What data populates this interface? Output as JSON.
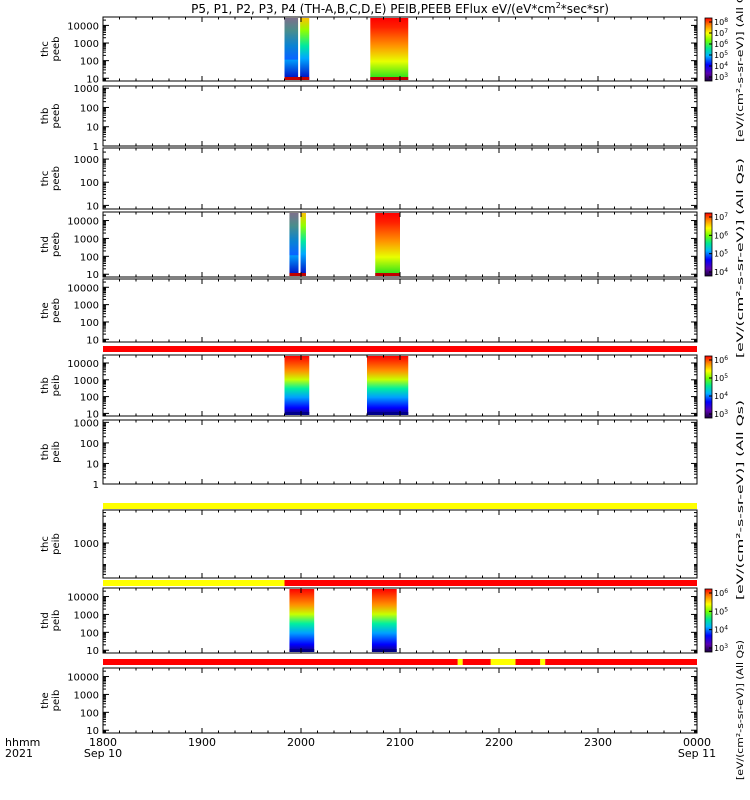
{
  "chart_data": {
    "type": "heatmap",
    "title": "P5, P1, P2, P3, P4 (TH-A,B,C,D,E) PEIB,PEEB EFlux eV/(eV*cm²*sec*sr)",
    "title_parts": {
      "before": "P5, P1, P2, P3, P4 (TH-A,B,C,D,E) PEIB,PEEB EFlux eV/(eV*cm",
      "sup": "2",
      "after": "*sec*sr)"
    },
    "xaxis": {
      "label_lines": [
        "hhmm",
        "2021"
      ],
      "range": [
        "1800",
        "0000"
      ],
      "ticks": [
        "1800",
        "1900",
        "2000",
        "2100",
        "2200",
        "2300",
        "0000"
      ],
      "date_labels": [
        {
          "at": "1800",
          "text": "Sep 10"
        },
        {
          "at": "0000",
          "text": "Sep 11"
        }
      ]
    },
    "colorbar_labels": [
      "[eV/(cm²-s-sr-eV)] (All Qs)",
      "[eV/(cm²-s-sr-eV)] (All Qs)",
      "[eV/(cm²-s-sr-eV)] (All Qs)",
      "[eV/(cm²-s-sr-eV)] (All Qs)"
    ],
    "colorbars": [
      {
        "exponents": [
          3,
          4,
          5,
          6,
          7,
          8
        ]
      },
      {
        "exponents": [
          4,
          5,
          6,
          7
        ]
      },
      {
        "exponents": [
          3,
          4,
          5,
          6
        ]
      },
      {
        "exponents": [
          3,
          4,
          5,
          6
        ]
      }
    ],
    "panels": [
      {
        "label": [
          "thc",
          "peeb"
        ],
        "yticks": [
          "10",
          "100",
          "1000",
          "10000"
        ],
        "ylim": [
          7,
          30000
        ],
        "cbar": 0,
        "bursts": [
          {
            "start": "1950",
            "end": "2005"
          },
          {
            "start": "2042",
            "end": "2105"
          }
        ]
      },
      {
        "label": [
          "thb",
          "peeb"
        ],
        "yticks": [
          "1",
          "10",
          "100",
          "1000"
        ],
        "ylim": [
          1,
          1300
        ],
        "cbar": null,
        "bursts": []
      },
      {
        "label": [
          "thc",
          "peeb"
        ],
        "yticks": [
          "10",
          "100",
          "1000"
        ],
        "ylim": [
          7,
          3000
        ],
        "cbar": null,
        "bursts": []
      },
      {
        "label": [
          "thd",
          "peeb"
        ],
        "yticks": [
          "10",
          "100",
          "1000",
          "10000"
        ],
        "ylim": [
          7,
          30000
        ],
        "cbar": 1,
        "bursts": [
          {
            "start": "1953",
            "end": "2003"
          },
          {
            "start": "2045",
            "end": "2060"
          }
        ]
      },
      {
        "label": [
          "the",
          "peeb"
        ],
        "yticks": [
          "10",
          "100",
          "1000",
          "10000"
        ],
        "ylim": [
          7,
          30000
        ],
        "cbar": null,
        "bursts": []
      },
      {
        "label": [
          "thb",
          "peib"
        ],
        "yticks": [
          "10",
          "100",
          "1000",
          "10000"
        ],
        "ylim": [
          7,
          30000
        ],
        "cbar": 2,
        "bursts": [
          {
            "start": "1950",
            "end": "2005"
          },
          {
            "start": "2040",
            "end": "2105"
          }
        ]
      },
      {
        "label": [
          "thb",
          "peib"
        ],
        "yticks": [
          "1",
          "10",
          "100",
          "1000"
        ],
        "ylim": [
          1,
          1300
        ],
        "cbar": null,
        "bursts": []
      },
      {
        "label": [
          "thc",
          "peib"
        ],
        "yticks": [
          "1000"
        ],
        "ylim": [
          20,
          40000
        ],
        "cbar": null,
        "bursts": []
      },
      {
        "label": [
          "thd",
          "peib"
        ],
        "yticks": [
          "10",
          "100",
          "1000",
          "10000"
        ],
        "ylim": [
          7,
          30000
        ],
        "cbar": 3,
        "bursts": [
          {
            "start": "1953",
            "end": "2008"
          },
          {
            "start": "2043",
            "end": "2058"
          }
        ]
      },
      {
        "label": [
          "the",
          "peib"
        ],
        "yticks": [
          "10",
          "100",
          "1000",
          "10000"
        ],
        "ylim": [
          7,
          30000
        ],
        "cbar": null,
        "bursts": []
      }
    ],
    "status_bars": [
      {
        "after_panel": 4,
        "segments": [
          {
            "start": "1800",
            "end": "0000",
            "color": "red"
          }
        ]
      },
      {
        "after_panel": 6,
        "segments": [
          {
            "start": "1800",
            "end": "0000",
            "color": "yellow"
          }
        ]
      },
      {
        "after_panel": 7,
        "segments": [
          {
            "start": "1800",
            "end": "1950",
            "color": "yellow"
          },
          {
            "start": "1950",
            "end": "0000",
            "color": "red"
          }
        ]
      },
      {
        "after_panel": 8,
        "segments": [
          {
            "start": "1800",
            "end": "2135",
            "color": "red"
          },
          {
            "start": "2135",
            "end": "2138",
            "color": "yellow"
          },
          {
            "start": "2138",
            "end": "2155",
            "color": "red"
          },
          {
            "start": "2155",
            "end": "2210",
            "color": "yellow"
          },
          {
            "start": "2210",
            "end": "2225",
            "color": "red"
          },
          {
            "start": "2225",
            "end": "2228",
            "color": "yellow"
          },
          {
            "start": "2228",
            "end": "0000",
            "color": "red"
          }
        ]
      }
    ],
    "colors": {
      "red": "#ff0000",
      "yellow": "#ffff00",
      "frame": "#000000",
      "background": "#ffffff"
    }
  }
}
